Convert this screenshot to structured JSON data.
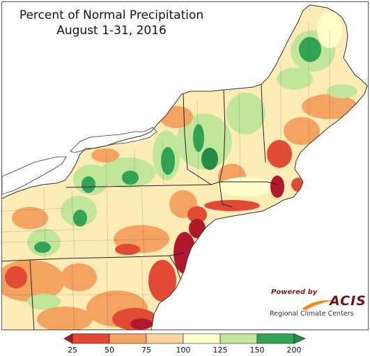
{
  "map": {
    "title_line_1": "Percent of Normal Precipitation",
    "title_line_2": "August 1-31, 2016"
  },
  "legend": {
    "labels": [
      "25",
      "50",
      "75",
      "100",
      "125",
      "150",
      "200"
    ],
    "colors": [
      "#b2182b",
      "#e34a33",
      "#f4a460",
      "#fdd49e",
      "#ffffcc",
      "#c2e699",
      "#31a354",
      "#238b45"
    ]
  },
  "logo": {
    "powered_by": "Powered by",
    "name": "ACIS",
    "subtitle": "Regional Climate Centers"
  }
}
